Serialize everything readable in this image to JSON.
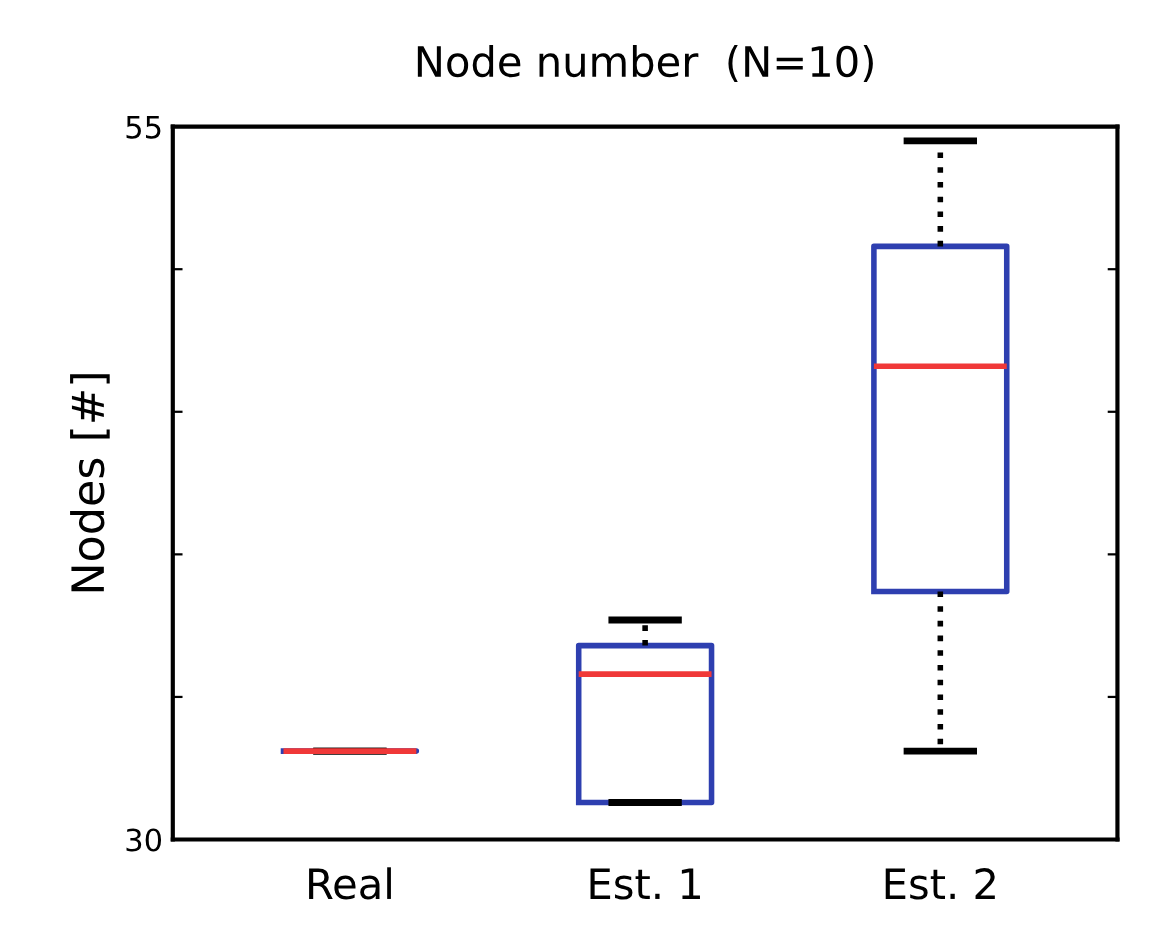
{
  "chart_data": {
    "type": "box",
    "title": "Node number  (N=10)",
    "ylabel": "Nodes [#]",
    "categories": [
      "Real",
      "Est. 1",
      "Est. 2"
    ],
    "boxes": [
      {
        "low": 33.1,
        "q1": 33.1,
        "median": 33.1,
        "q3": 33.1,
        "high": 33.1
      },
      {
        "low": 31.3,
        "q1": 31.3,
        "median": 35.8,
        "q3": 36.8,
        "high": 37.7
      },
      {
        "low": 33.1,
        "q1": 38.7,
        "median": 46.6,
        "q3": 50.8,
        "high": 54.5
      }
    ],
    "color": "#2e3fb0",
    "ylim": [
      30,
      55
    ],
    "yticks": [
      30,
      {
        "value": 35,
        "label": null
      },
      {
        "value": 40,
        "label": null
      },
      {
        "value": 45,
        "label": null
      },
      {
        "value": 50,
        "label": null
      },
      55
    ],
    "grid": false,
    "legend": false
  }
}
